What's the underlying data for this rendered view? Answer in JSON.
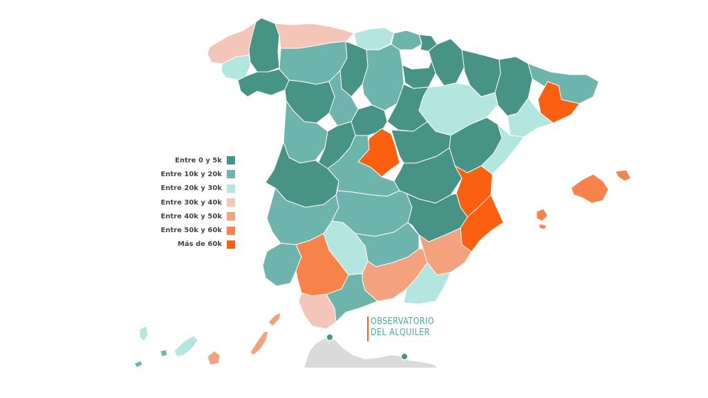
{
  "legend": {
    "items": [
      {
        "label": "Entre 0 y 5k",
        "color": "#479385"
      },
      {
        "label": "Entre 10k y 20k",
        "color": "#6db5ac"
      },
      {
        "label": "Entre 20k y 30k",
        "color": "#b3e6df"
      },
      {
        "label": "Entre 30k y 40k",
        "color": "#f3c6b9"
      },
      {
        "label": "Entre 40k y 50k",
        "color": "#f4a27d"
      },
      {
        "label": "Entre 50k y 60k",
        "color": "#f7834a"
      },
      {
        "label": "Más de 60k",
        "color": "#fb6010"
      }
    ]
  },
  "logo": {
    "line1": "OBSERVATORIO",
    "line2": "DEL ALQUILER"
  },
  "colors": {
    "accent_orange": "#f26522",
    "logo_teal": "#4aa9a0",
    "africa_gray": "#dadada",
    "border_white": "#ffffff"
  },
  "map": {
    "regions": [
      {
        "name": "A Coruña",
        "class": 3
      },
      {
        "name": "Lugo",
        "class": 0
      },
      {
        "name": "Pontevedra",
        "class": 2
      },
      {
        "name": "Ourense",
        "class": 0
      },
      {
        "name": "Asturias",
        "class": 3
      },
      {
        "name": "Cantabria",
        "class": 2
      },
      {
        "name": "Bizkaia",
        "class": 1
      },
      {
        "name": "Gipuzkoa",
        "class": 0
      },
      {
        "name": "Navarra",
        "class": 0
      },
      {
        "name": "Huesca",
        "class": 0
      },
      {
        "name": "Lleida",
        "class": 0
      },
      {
        "name": "Girona",
        "class": 1
      },
      {
        "name": "Barcelona",
        "class": 6
      },
      {
        "name": "Tarragona",
        "class": 2
      },
      {
        "name": "León",
        "class": 1
      },
      {
        "name": "Palencia",
        "class": 0
      },
      {
        "name": "Burgos",
        "class": 1
      },
      {
        "name": "La Rioja",
        "class": 0
      },
      {
        "name": "Zaragoza",
        "class": 2
      },
      {
        "name": "Zamora",
        "class": 0
      },
      {
        "name": "Valladolid",
        "class": 1
      },
      {
        "name": "Soria",
        "class": 0
      },
      {
        "name": "Salamanca",
        "class": 1
      },
      {
        "name": "Segovia",
        "class": 0
      },
      {
        "name": "Ávila",
        "class": 0
      },
      {
        "name": "Madrid",
        "class": 6
      },
      {
        "name": "Guadalajara",
        "class": 0
      },
      {
        "name": "Teruel",
        "class": 0
      },
      {
        "name": "Castellón",
        "class": 2
      },
      {
        "name": "Cáceres",
        "class": 0
      },
      {
        "name": "Toledo",
        "class": 1
      },
      {
        "name": "Cuenca",
        "class": 0
      },
      {
        "name": "Valencia",
        "class": 6
      },
      {
        "name": "Badajoz",
        "class": 1
      },
      {
        "name": "Ciudad Real",
        "class": 1
      },
      {
        "name": "Albacete",
        "class": 0
      },
      {
        "name": "Alicante",
        "class": 6
      },
      {
        "name": "Huelva",
        "class": 1
      },
      {
        "name": "Sevilla",
        "class": 5
      },
      {
        "name": "Córdoba",
        "class": 2
      },
      {
        "name": "Jaén",
        "class": 1
      },
      {
        "name": "Granada",
        "class": 4
      },
      {
        "name": "Almería",
        "class": 2
      },
      {
        "name": "Murcia",
        "class": 4
      },
      {
        "name": "Cádiz",
        "class": 3
      },
      {
        "name": "Málaga",
        "class": 1
      },
      {
        "name": "Mallorca",
        "class": 5
      },
      {
        "name": "Menorca",
        "class": 5
      },
      {
        "name": "Ibiza-Formentera",
        "class": 5
      },
      {
        "name": "El Hierro",
        "class": 1
      },
      {
        "name": "La Palma",
        "class": 2
      },
      {
        "name": "La Gomera",
        "class": 1
      },
      {
        "name": "Tenerife",
        "class": 2
      },
      {
        "name": "Gran Canaria",
        "class": 4
      },
      {
        "name": "Fuerteventura",
        "class": 4
      },
      {
        "name": "Lanzarote",
        "class": 4
      },
      {
        "name": "Ceuta",
        "class": 0
      },
      {
        "name": "Melilla",
        "class": 0
      }
    ]
  }
}
